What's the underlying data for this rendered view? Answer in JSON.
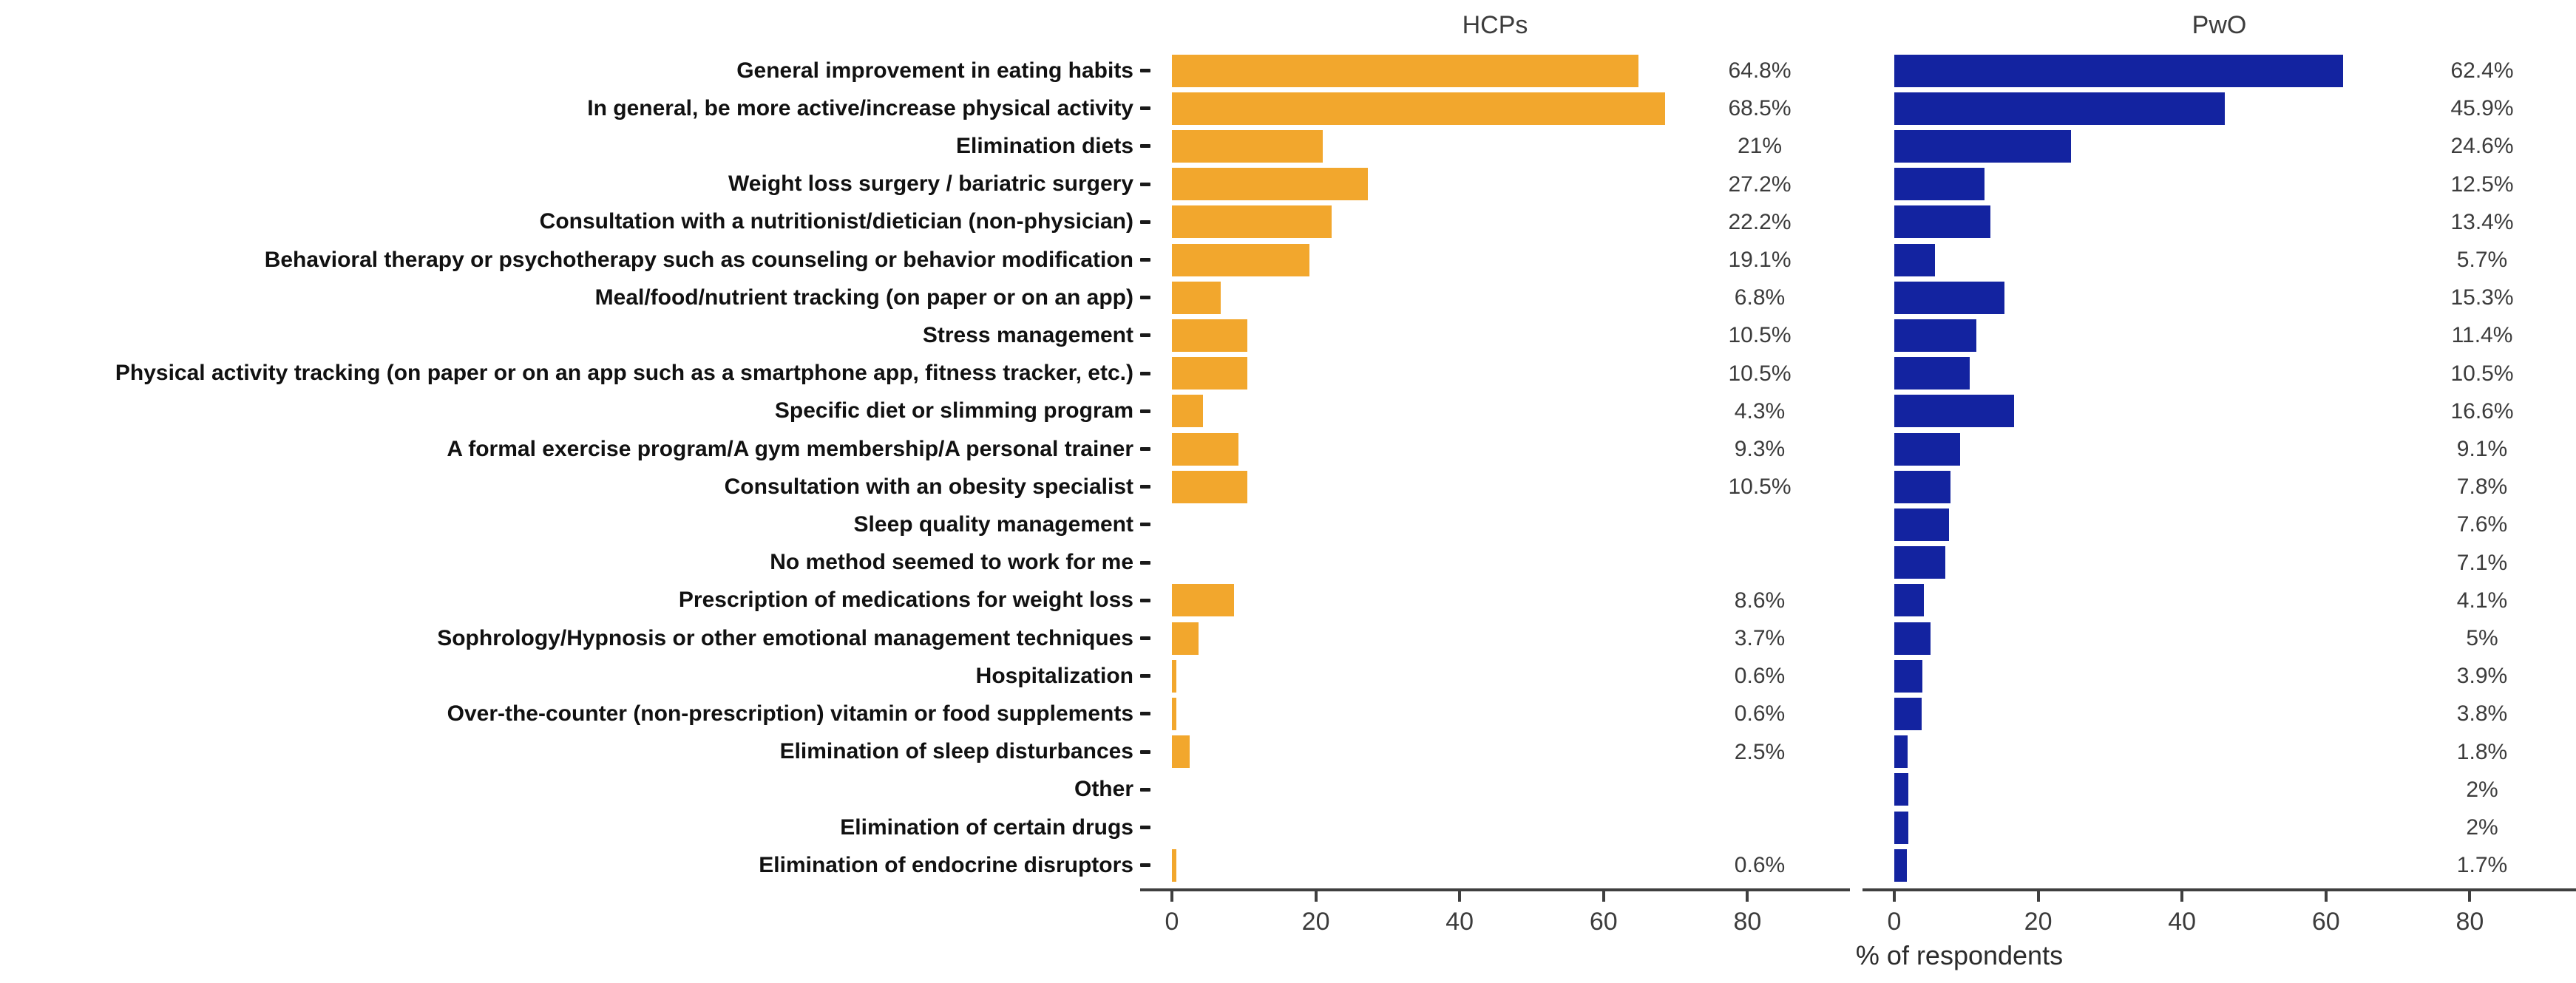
{
  "chart_data": {
    "type": "bar",
    "orientation": "horizontal",
    "xlabel": "% of respondents",
    "x_ticks": [
      "0",
      "20",
      "40",
      "60",
      "80"
    ],
    "x_tick_values": [
      0,
      20,
      40,
      60,
      80
    ],
    "xlim": [
      0,
      95
    ],
    "grid": false,
    "legend_position": "none",
    "panel_titles": [
      "HCPs",
      "PwO"
    ],
    "categories": [
      "General improvement in eating habits",
      "In general, be more active/increase physical activity",
      "Elimination diets",
      "Weight loss surgery / bariatric surgery",
      "Consultation with a nutritionist/dietician (non-physician)",
      "Behavioral therapy or psychotherapy such as counseling or behavior modification",
      "Meal/food/nutrient tracking (on paper or on an app)",
      "Stress management",
      "Physical activity tracking (on paper or on an app such as a smartphone app, fitness tracker, etc.)",
      "Specific diet or slimming program",
      "A formal exercise program/A gym membership/A personal trainer",
      "Consultation with an obesity specialist",
      "Sleep quality management",
      "No method seemed to work for me",
      "Prescription of medications for weight loss",
      "Sophrology/Hypnosis or other emotional management techniques",
      "Hospitalization",
      "Over-the-counter (non-prescription) vitamin or food supplements",
      "Elimination of sleep disturbances",
      "Other",
      "Elimination of certain drugs",
      "Elimination of endocrine disruptors"
    ],
    "series": [
      {
        "name": "HCPs",
        "color": "#F2A72D",
        "values": [
          64.8,
          68.5,
          21,
          27.2,
          22.2,
          19.1,
          6.8,
          10.5,
          10.5,
          4.3,
          9.3,
          10.5,
          null,
          null,
          8.6,
          3.7,
          0.6,
          0.6,
          2.5,
          null,
          null,
          0.6
        ],
        "value_labels": [
          "64.8%",
          "68.5%",
          "21%",
          "27.2%",
          "22.2%",
          "19.1%",
          "6.8%",
          "10.5%",
          "10.5%",
          "4.3%",
          "9.3%",
          "10.5%",
          "",
          "",
          "8.6%",
          "3.7%",
          "0.6%",
          "0.6%",
          "2.5%",
          "",
          "",
          "0.6%"
        ]
      },
      {
        "name": "PwO",
        "color": "#1323A0",
        "values": [
          62.4,
          45.9,
          24.6,
          12.5,
          13.4,
          5.7,
          15.3,
          11.4,
          10.5,
          16.6,
          9.1,
          7.8,
          7.6,
          7.1,
          4.1,
          5,
          3.9,
          3.8,
          1.8,
          2,
          2,
          1.7
        ],
        "value_labels": [
          "62.4%",
          "45.9%",
          "24.6%",
          "12.5%",
          "13.4%",
          "5.7%",
          "15.3%",
          "11.4%",
          "10.5%",
          "16.6%",
          "9.1%",
          "7.8%",
          "7.6%",
          "7.1%",
          "4.1%",
          "5%",
          "3.9%",
          "3.8%",
          "1.8%",
          "2%",
          "2%",
          "1.7%"
        ]
      }
    ]
  }
}
